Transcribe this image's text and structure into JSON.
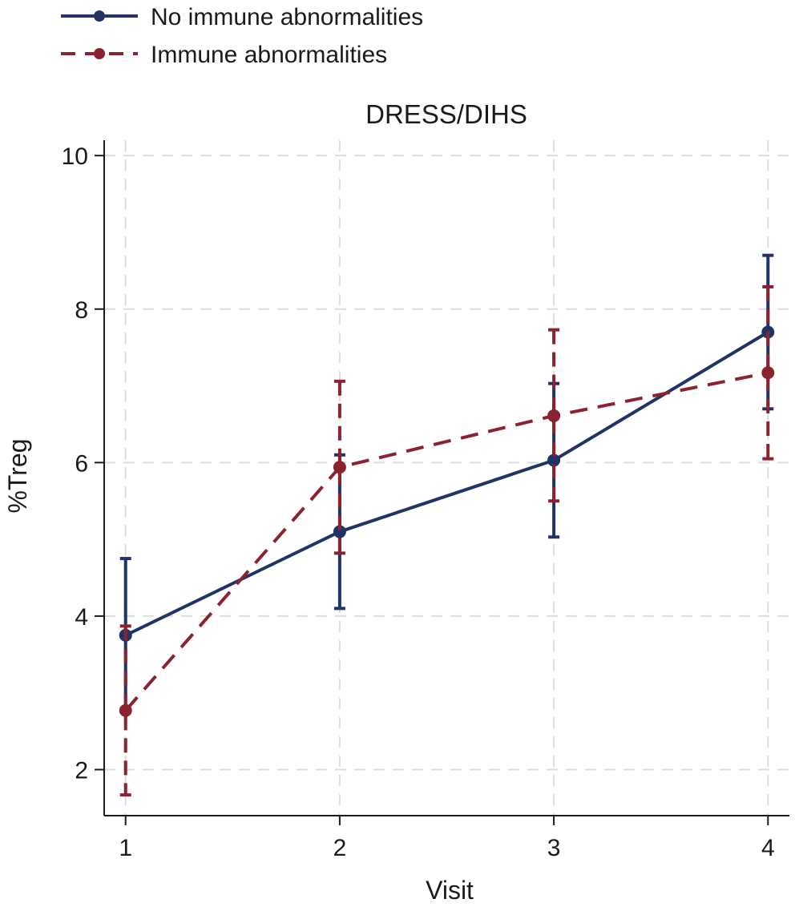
{
  "chart_data": {
    "type": "line",
    "title": "DRESS/DIHS",
    "xlabel": "Visit",
    "ylabel": "%Treg",
    "x": [
      1,
      2,
      3,
      4
    ],
    "x_ticks": [
      "1",
      "2",
      "3",
      "4"
    ],
    "y_ticks": [
      "2",
      "4",
      "6",
      "8",
      "10"
    ],
    "xlim": [
      0.9,
      4.1
    ],
    "ylim": [
      1.4,
      10.2
    ],
    "grid": true,
    "legend_position": "top-left, outside plot",
    "series": [
      {
        "name": "No immune abnormalities",
        "color": "#1f3465",
        "line_style": "solid",
        "values": [
          3.75,
          5.1,
          6.03,
          7.7
        ],
        "ci_low": [
          2.75,
          4.1,
          5.03,
          6.7
        ],
        "ci_high": [
          4.75,
          6.1,
          7.03,
          8.7
        ]
      },
      {
        "name": "Immune abnormalities",
        "color": "#8b2230",
        "line_style": "dashed",
        "values": [
          2.77,
          5.94,
          6.61,
          7.17
        ],
        "ci_low": [
          1.67,
          4.82,
          5.5,
          6.05
        ],
        "ci_high": [
          3.87,
          7.06,
          7.73,
          8.29
        ]
      }
    ]
  }
}
